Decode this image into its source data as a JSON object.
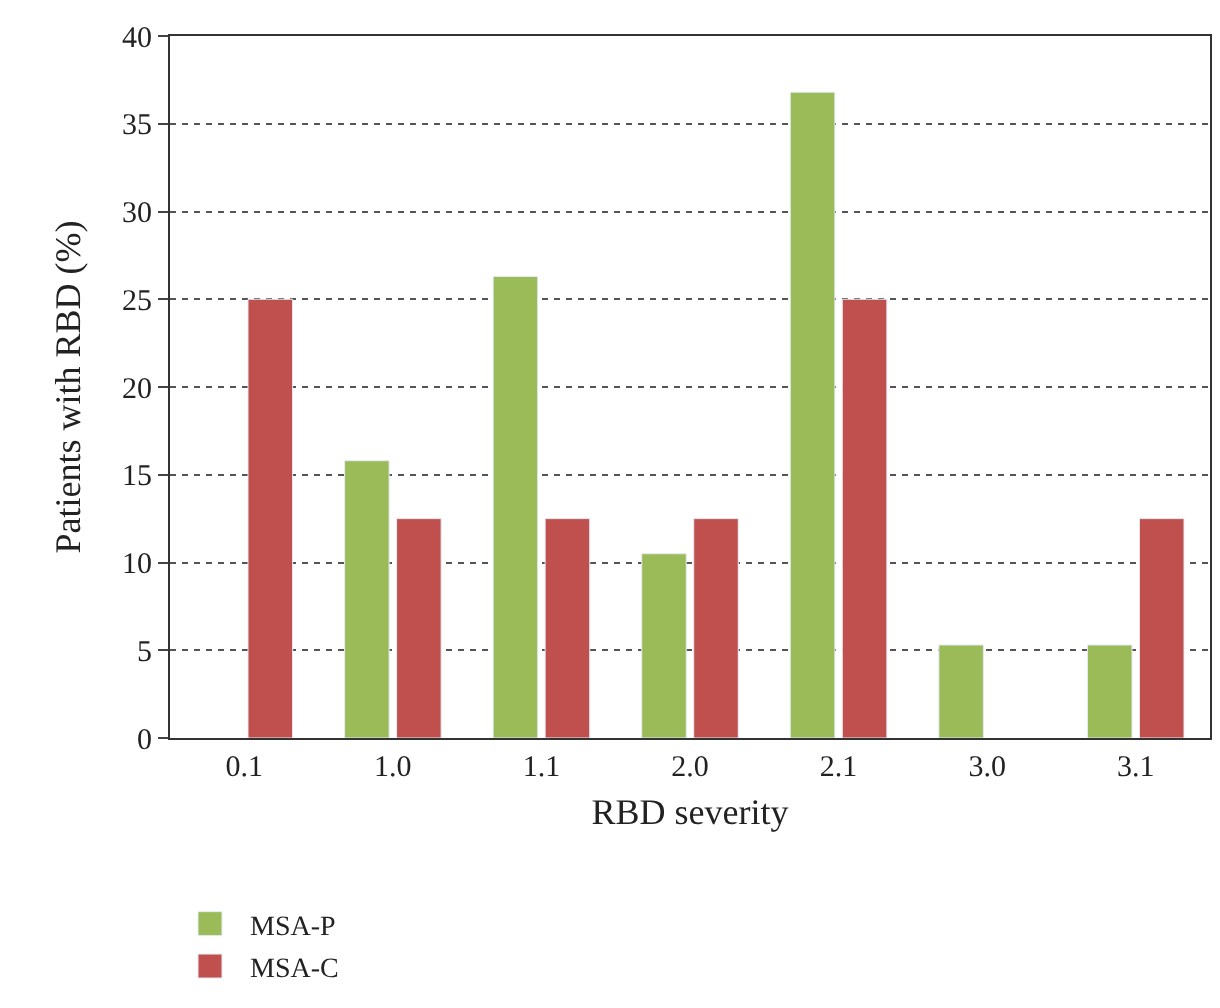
{
  "chart_data": {
    "type": "bar",
    "xlabel": "RBD severity",
    "ylabel": "Patients with RBD (%)",
    "categories": [
      "0.1",
      "1.0",
      "1.1",
      "2.0",
      "2.1",
      "3.0",
      "3.1"
    ],
    "series": [
      {
        "name": "MSA-P",
        "color": "#9bbb59",
        "values": [
          null,
          15.8,
          26.3,
          10.5,
          36.8,
          5.3,
          5.3
        ]
      },
      {
        "name": "MSA-C",
        "color": "#c0504d",
        "values": [
          25,
          12.5,
          12.5,
          12.5,
          25,
          null,
          12.5
        ]
      }
    ],
    "ylim": [
      0,
      40
    ],
    "yticks": [
      0,
      5,
      10,
      15,
      20,
      25,
      30,
      35,
      40
    ],
    "grid": "y",
    "legend": "bottom left"
  }
}
